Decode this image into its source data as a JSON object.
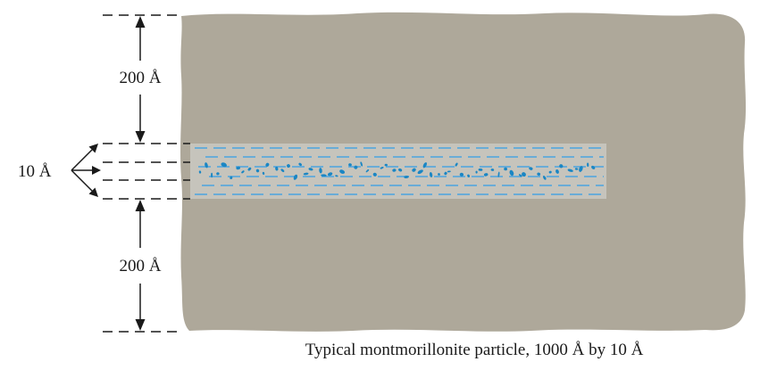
{
  "diagram": {
    "labels": {
      "top_spacing": "200 Å",
      "layer_thickness": "10 Å",
      "bottom_spacing": "200 Å"
    },
    "caption": "Typical montmorillonite particle, 1000 Å by 10 Å"
  },
  "colors": {
    "water_block": "#aea89a",
    "layer_fill": "#c6c4bc",
    "water_dashes": "#4aa3e0",
    "particles": "#1a86c4",
    "lines": "#1a1a1a"
  }
}
